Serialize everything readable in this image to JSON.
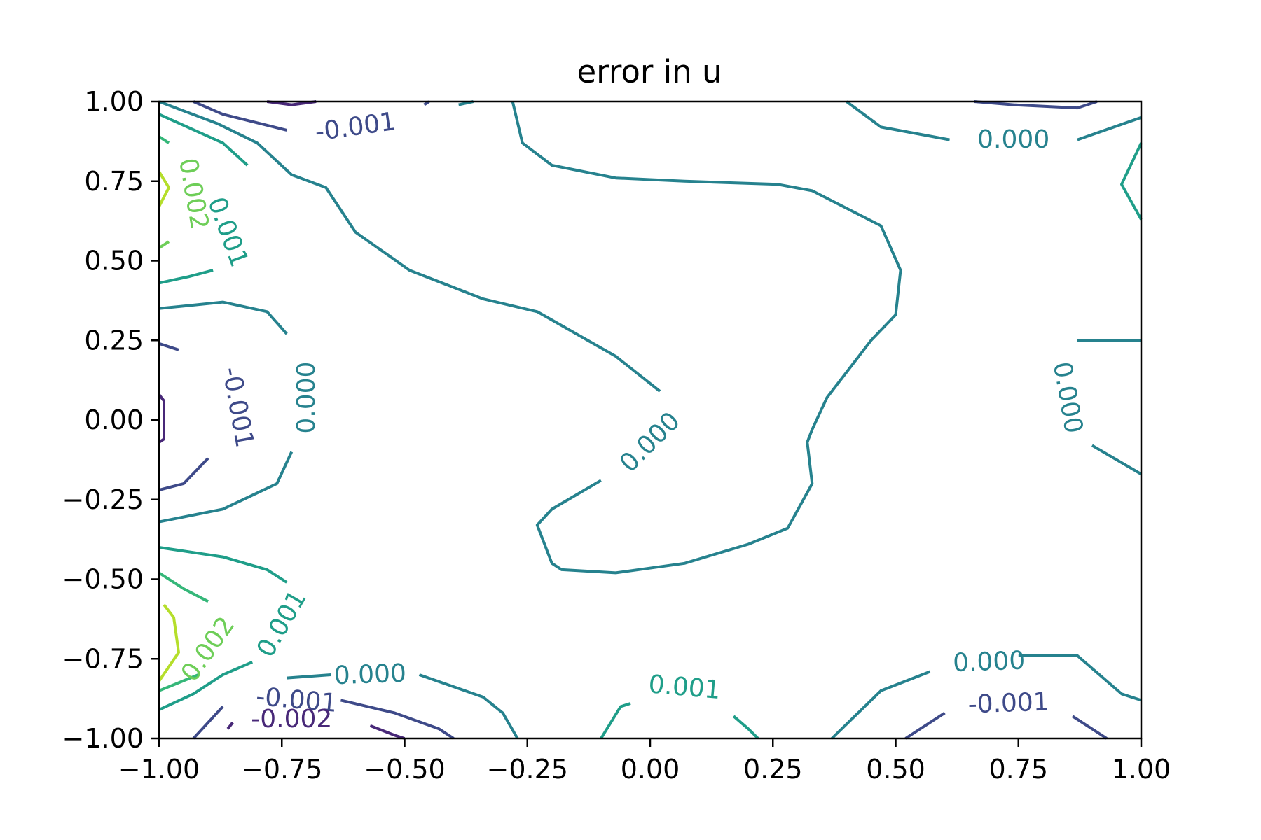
{
  "chart_data": {
    "type": "contour",
    "title": "error in u",
    "xlabel": "",
    "ylabel": "",
    "xlim": [
      -1.0,
      1.0
    ],
    "ylim": [
      -1.0,
      1.0
    ],
    "xticks": [
      "−1.00",
      "−0.75",
      "−0.50",
      "−0.25",
      "0.00",
      "0.25",
      "0.50",
      "0.75",
      "1.00"
    ],
    "yticks": [
      "−1.00",
      "−0.75",
      "−0.50",
      "−0.25",
      "0.00",
      "0.25",
      "0.50",
      "0.75",
      "1.00"
    ],
    "xtick_values": [
      -1.0,
      -0.75,
      -0.5,
      -0.25,
      0.0,
      0.25,
      0.5,
      0.75,
      1.0
    ],
    "ytick_values": [
      -1.0,
      -0.75,
      -0.5,
      -0.25,
      0.0,
      0.25,
      0.5,
      0.75,
      1.0
    ],
    "grid": false,
    "colormap": "viridis",
    "level_colors": {
      "-0.002": "#482878",
      "-0.001": "#3e4a89",
      "0.000": "#26828e",
      "0.001": "#1f9e89",
      "0.0015": "#35b779",
      "0.002": "#6ece58",
      "0.0025": "#b5de2b"
    },
    "contours": [
      {
        "level": "0.000",
        "path": [
          [
            -0.28,
            1.0
          ],
          [
            -0.26,
            0.87
          ],
          [
            -0.2,
            0.8
          ],
          [
            -0.07,
            0.76
          ],
          [
            0.07,
            0.75
          ],
          [
            0.26,
            0.74
          ],
          [
            0.33,
            0.72
          ],
          [
            0.47,
            0.61
          ],
          [
            0.51,
            0.47
          ],
          [
            0.5,
            0.33
          ],
          [
            0.45,
            0.25
          ],
          [
            0.36,
            0.07
          ],
          [
            0.33,
            -0.03
          ],
          [
            0.32,
            -0.07
          ],
          [
            0.33,
            -0.2
          ],
          [
            0.28,
            -0.34
          ],
          [
            0.2,
            -0.39
          ],
          [
            0.07,
            -0.45
          ],
          [
            -0.07,
            -0.48
          ],
          [
            -0.18,
            -0.47
          ],
          [
            -0.2,
            -0.45
          ],
          [
            -0.23,
            -0.33
          ],
          [
            -0.2,
            -0.28
          ],
          [
            -0.1,
            -0.19
          ]
        ]
      },
      {
        "level": "0.000",
        "path": [
          [
            0.02,
            0.09
          ],
          [
            -0.07,
            0.2
          ],
          [
            -0.23,
            0.34
          ],
          [
            -0.34,
            0.38
          ],
          [
            -0.49,
            0.47
          ],
          [
            -0.6,
            0.59
          ],
          [
            -0.66,
            0.73
          ],
          [
            -0.73,
            0.77
          ],
          [
            -0.8,
            0.87
          ],
          [
            -0.88,
            0.93
          ],
          [
            -1.0,
            1.0
          ]
        ]
      },
      {
        "level": "0.000",
        "path": [
          [
            -0.36,
            1.0
          ],
          [
            -0.39,
            0.99
          ]
        ]
      },
      {
        "level": "0.000",
        "path": [
          [
            0.4,
            1.0
          ],
          [
            0.47,
            0.92
          ],
          [
            0.61,
            0.88
          ]
        ]
      },
      {
        "level": "0.000",
        "path": [
          [
            0.87,
            0.88
          ],
          [
            1.0,
            0.95
          ]
        ]
      },
      {
        "level": "0.000",
        "path": [
          [
            -1.0,
            0.35
          ],
          [
            -0.87,
            0.37
          ],
          [
            -0.78,
            0.34
          ],
          [
            -0.74,
            0.27
          ]
        ]
      },
      {
        "level": "0.000",
        "path": [
          [
            -0.73,
            -0.1
          ],
          [
            -0.76,
            -0.2
          ],
          [
            -0.87,
            -0.28
          ],
          [
            -1.0,
            -0.32
          ]
        ]
      },
      {
        "level": "0.000",
        "path": [
          [
            0.87,
            0.25
          ],
          [
            1.0,
            0.25
          ]
        ]
      },
      {
        "level": "0.000",
        "path": [
          [
            0.9,
            -0.08
          ],
          [
            1.0,
            -0.17
          ]
        ]
      },
      {
        "level": "0.000",
        "path": [
          [
            -0.74,
            -0.81
          ],
          [
            -0.65,
            -0.8
          ]
        ]
      },
      {
        "level": "0.000",
        "path": [
          [
            -0.47,
            -0.8
          ],
          [
            -0.34,
            -0.87
          ],
          [
            -0.3,
            -0.92
          ],
          [
            -0.27,
            -1.0
          ]
        ]
      },
      {
        "level": "0.000",
        "path": [
          [
            0.37,
            -1.0
          ],
          [
            0.47,
            -0.85
          ],
          [
            0.57,
            -0.79
          ]
        ]
      },
      {
        "level": "0.000",
        "path": [
          [
            0.75,
            -0.74
          ],
          [
            0.87,
            -0.74
          ],
          [
            0.96,
            -0.86
          ],
          [
            1.0,
            -0.88
          ]
        ]
      },
      {
        "level": "-0.001",
        "path": [
          [
            -0.93,
            1.0
          ],
          [
            -0.87,
            0.96
          ],
          [
            -0.74,
            0.91
          ]
        ]
      },
      {
        "level": "-0.001",
        "path": [
          [
            -0.46,
            0.99
          ],
          [
            -0.45,
            1.0
          ]
        ]
      },
      {
        "level": "-0.001",
        "path": [
          [
            0.66,
            1.0
          ],
          [
            0.74,
            0.99
          ],
          [
            0.87,
            0.98
          ],
          [
            0.91,
            1.0
          ]
        ]
      },
      {
        "level": "-0.001",
        "path": [
          [
            -1.0,
            0.24
          ],
          [
            -0.96,
            0.22
          ]
        ]
      },
      {
        "level": "-0.001",
        "path": [
          [
            -0.9,
            -0.12
          ],
          [
            -0.95,
            -0.2
          ],
          [
            -1.0,
            -0.22
          ]
        ]
      },
      {
        "level": "-0.001",
        "path": [
          [
            -0.63,
            -0.88
          ],
          [
            -0.52,
            -0.92
          ],
          [
            -0.43,
            -0.97
          ],
          [
            -0.4,
            -1.0
          ]
        ]
      },
      {
        "level": "-0.001",
        "path": [
          [
            0.52,
            -1.0
          ],
          [
            0.6,
            -0.92
          ]
        ]
      },
      {
        "level": "-0.001",
        "path": [
          [
            0.86,
            -0.93
          ],
          [
            0.93,
            -1.0
          ]
        ]
      },
      {
        "level": "-0.001",
        "path": [
          [
            -0.87,
            -0.9
          ],
          [
            -0.93,
            -1.0
          ]
        ]
      },
      {
        "level": "-0.002",
        "path": [
          [
            -0.78,
            1.0
          ],
          [
            -0.73,
            0.99
          ],
          [
            -0.68,
            1.0
          ]
        ]
      },
      {
        "level": "-0.002",
        "path": [
          [
            -1.0,
            0.08
          ],
          [
            -0.99,
            0.06
          ],
          [
            -0.99,
            -0.06
          ],
          [
            -1.0,
            -0.07
          ]
        ]
      },
      {
        "level": "-0.002",
        "path": [
          [
            -0.57,
            -0.96
          ],
          [
            -0.52,
            -0.99
          ],
          [
            -0.5,
            -1.0
          ]
        ]
      },
      {
        "level": "-0.002",
        "path": [
          [
            -0.85,
            -0.95
          ],
          [
            -0.86,
            -0.97
          ]
        ]
      },
      {
        "level": "0.001",
        "path": [
          [
            -1.0,
            0.96
          ],
          [
            -0.87,
            0.87
          ],
          [
            -0.82,
            0.8
          ]
        ]
      },
      {
        "level": "0.001",
        "path": [
          [
            -0.89,
            0.47
          ],
          [
            -0.94,
            0.45
          ],
          [
            -1.0,
            0.43
          ]
        ]
      },
      {
        "level": "0.001",
        "path": [
          [
            -1.0,
            -0.4
          ],
          [
            -0.87,
            -0.43
          ],
          [
            -0.78,
            -0.47
          ],
          [
            -0.74,
            -0.51
          ]
        ]
      },
      {
        "level": "0.001",
        "path": [
          [
            -0.81,
            -0.76
          ],
          [
            -0.87,
            -0.8
          ],
          [
            -0.93,
            -0.86
          ],
          [
            -1.0,
            -0.91
          ]
        ]
      },
      {
        "level": "0.001",
        "path": [
          [
            -0.1,
            -1.0
          ],
          [
            -0.06,
            -0.9
          ],
          [
            -0.04,
            -0.89
          ]
        ]
      },
      {
        "level": "0.001",
        "path": [
          [
            0.17,
            -0.93
          ],
          [
            0.2,
            -0.97
          ],
          [
            0.22,
            -1.0
          ]
        ]
      },
      {
        "level": "0.001",
        "path": [
          [
            1.0,
            0.87
          ],
          [
            0.96,
            0.74
          ],
          [
            1.0,
            0.63
          ]
        ]
      },
      {
        "level": "0.0015",
        "path": [
          [
            -1.0,
            0.89
          ],
          [
            -0.98,
            0.87
          ]
        ]
      },
      {
        "level": "0.0015",
        "path": [
          [
            -1.0,
            -0.48
          ],
          [
            -0.95,
            -0.53
          ],
          [
            -0.9,
            -0.57
          ]
        ]
      },
      {
        "level": "0.0015",
        "path": [
          [
            -1.0,
            -0.85
          ],
          [
            -0.92,
            -0.8
          ]
        ]
      },
      {
        "level": "0.002",
        "path": [
          [
            -0.98,
            0.56
          ],
          [
            -1.0,
            0.54
          ]
        ]
      },
      {
        "level": "0.0025",
        "path": [
          [
            -1.0,
            0.78
          ],
          [
            -0.98,
            0.73
          ],
          [
            -1.0,
            0.67
          ]
        ]
      },
      {
        "level": "0.0025",
        "path": [
          [
            -0.99,
            -0.58
          ],
          [
            -0.97,
            -0.62
          ],
          [
            -0.96,
            -0.73
          ],
          [
            -1.0,
            -0.82
          ]
        ]
      }
    ],
    "contour_labels": [
      {
        "text": "-0.001",
        "level": "-0.001",
        "x": -0.6,
        "y": 0.92,
        "rotation": -8
      },
      {
        "text": "0.000",
        "level": "0.000",
        "x": 0.74,
        "y": 0.88,
        "rotation": 0
      },
      {
        "text": "0.002",
        "level": "0.002",
        "x": -0.93,
        "y": 0.71,
        "rotation": 80
      },
      {
        "text": "0.001",
        "level": "0.001",
        "x": -0.86,
        "y": 0.59,
        "rotation": 70
      },
      {
        "text": "-0.001",
        "level": "-0.001",
        "x": -0.84,
        "y": 0.04,
        "rotation": 80
      },
      {
        "text": "0.000",
        "level": "0.000",
        "x": -0.7,
        "y": 0.07,
        "rotation": -90
      },
      {
        "text": "0.000",
        "level": "0.000",
        "x": 0.0,
        "y": -0.07,
        "rotation": -45
      },
      {
        "text": "0.000",
        "level": "0.000",
        "x": 0.85,
        "y": 0.07,
        "rotation": 80
      },
      {
        "text": "0.001",
        "level": "0.001",
        "x": -0.75,
        "y": -0.64,
        "rotation": -60
      },
      {
        "text": "0.002",
        "level": "0.002",
        "x": -0.9,
        "y": -0.72,
        "rotation": -55
      },
      {
        "text": "0.000",
        "level": "0.000",
        "x": -0.57,
        "y": -0.8,
        "rotation": -2
      },
      {
        "text": "0.001",
        "level": "0.001",
        "x": 0.07,
        "y": -0.84,
        "rotation": 5
      },
      {
        "text": "0.000",
        "level": "0.000",
        "x": 0.69,
        "y": -0.76,
        "rotation": -2
      },
      {
        "text": "-0.001",
        "level": "-0.001",
        "x": 0.73,
        "y": -0.89,
        "rotation": -2
      },
      {
        "text": "-0.001",
        "level": "-0.001",
        "x": -0.72,
        "y": -0.88,
        "rotation": 5
      },
      {
        "text": "-0.002",
        "level": "-0.002",
        "x": -0.73,
        "y": -0.94,
        "rotation": 0
      }
    ]
  }
}
